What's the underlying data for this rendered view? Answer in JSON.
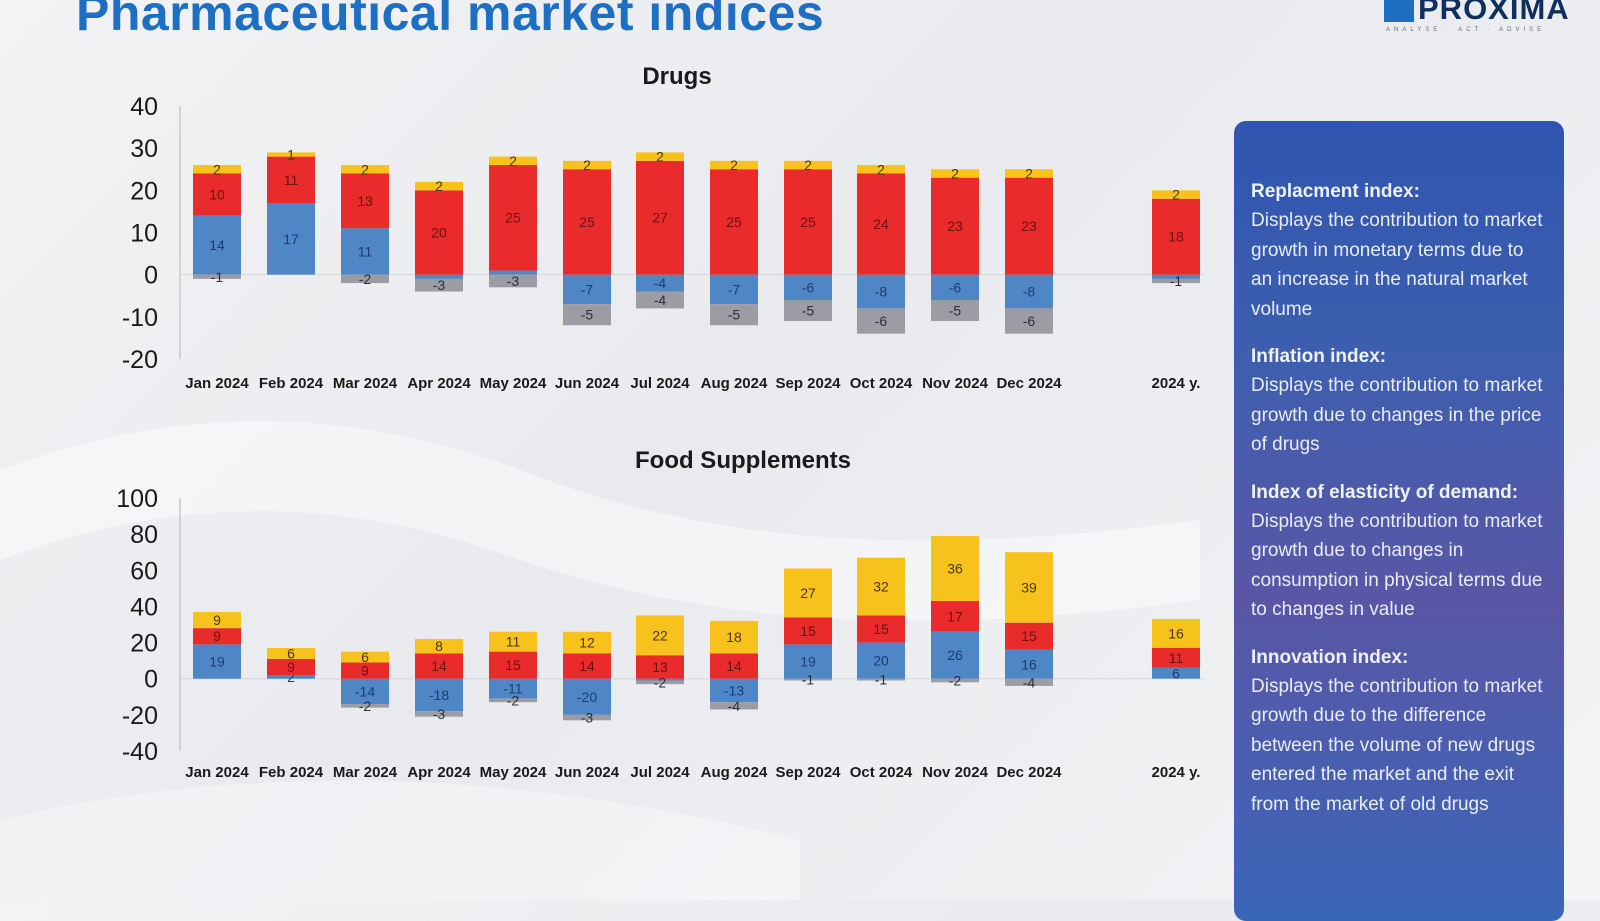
{
  "page": {
    "title": "Pharmaceutical market indices",
    "logo": {
      "name": "PROXIMA",
      "tagline": "ANALYSE · ACT · ADVISE"
    }
  },
  "colors": {
    "replacement": "#4f86c6",
    "inflation": "#ea2b2b",
    "elasticity": "#f7c21c",
    "innovation": "#9c9ca4",
    "title": "#1d6fc4",
    "panel": "#3a5cb0"
  },
  "info_panel": {
    "sections": [
      {
        "heading": "Replacment index:",
        "text": "Displays the contribution to market growth in monetary terms due to an increase in the natural market volume"
      },
      {
        "heading": "Inflation index:",
        "text": "Displays the contribution to market growth due to changes in the price of drugs"
      },
      {
        "heading": "Index of elasticity of demand:",
        "text": "Displays the contribution to market growth due to changes in consumption in physical terms due to changes in value"
      },
      {
        "heading": "Innovation index:",
        "text": "Displays the contribution to market growth due to the difference between the volume of new drugs entered the market and the exit from the market of old drugs"
      }
    ]
  },
  "chart_data": [
    {
      "type": "bar",
      "stacked": true,
      "title": "Drugs",
      "xlabel": "",
      "ylabel": "",
      "ylim": [
        -20,
        40
      ],
      "yticks": [
        40,
        30,
        20,
        10,
        0,
        -10,
        -20
      ],
      "grid": false,
      "legend": "none",
      "categories": [
        "Jan 2024",
        "Feb 2024",
        "Mar 2024",
        "Apr 2024",
        "May 2024",
        "Jun 2024",
        "Jul 2024",
        "Aug 2024",
        "Sep 2024",
        "Oct 2024",
        "Nov 2024",
        "Dec 2024",
        "2024 y."
      ],
      "series": [
        {
          "key": "replacement",
          "color": "#4f86c6",
          "values": [
            14,
            17,
            11,
            -1,
            1,
            -7,
            -4,
            -7,
            -6,
            -8,
            -6,
            -8,
            -1
          ],
          "labels": [
            "14",
            "17",
            "11",
            "",
            "",
            "-7",
            "-4",
            "-7",
            "-6",
            "-8",
            "-6",
            "-8",
            ""
          ]
        },
        {
          "key": "inflation",
          "color": "#ea2b2b",
          "values": [
            10,
            11,
            13,
            20,
            25,
            25,
            27,
            25,
            25,
            24,
            23,
            23,
            18
          ],
          "labels": [
            "10",
            "11",
            "13",
            "20",
            "25",
            "25",
            "27",
            "25",
            "25",
            "24",
            "23",
            "23",
            "18"
          ]
        },
        {
          "key": "elasticity",
          "color": "#f7c21c",
          "values": [
            2,
            1,
            2,
            2,
            2,
            2,
            2,
            2,
            2,
            2,
            2,
            2,
            2
          ],
          "labels": [
            "2",
            "1",
            "2",
            "2",
            "2",
            "2",
            "2",
            "2",
            "2",
            "2",
            "2",
            "2",
            "2"
          ]
        },
        {
          "key": "innovation",
          "color": "#9c9ca4",
          "values": [
            -1,
            0,
            -2,
            -3,
            -3,
            -5,
            -4,
            -5,
            -5,
            -6,
            -5,
            -6,
            -1
          ],
          "labels": [
            "-1",
            "0",
            "-2",
            "-3",
            "-3",
            "-5",
            "-4",
            "-5",
            "-5",
            "-6",
            "-5",
            "-6",
            "-1"
          ]
        }
      ]
    },
    {
      "type": "bar",
      "stacked": true,
      "title": "Food Supplements",
      "xlabel": "",
      "ylabel": "",
      "ylim": [
        -40,
        100
      ],
      "yticks": [
        100,
        80,
        60,
        40,
        20,
        0,
        -20,
        -40
      ],
      "grid": false,
      "legend": "none",
      "categories": [
        "Jan 2024",
        "Feb 2024",
        "Mar 2024",
        "Apr 2024",
        "May 2024",
        "Jun 2024",
        "Jul 2024",
        "Aug 2024",
        "Sep 2024",
        "Oct 2024",
        "Nov 2024",
        "Dec 2024",
        "2024 y."
      ],
      "series": [
        {
          "key": "replacement",
          "color": "#4f86c6",
          "values": [
            19,
            2,
            -14,
            -18,
            -11,
            -20,
            -1,
            -13,
            19,
            20,
            26,
            16,
            6
          ],
          "labels": [
            "19",
            "2",
            "-14",
            "-18",
            "-11",
            "-20",
            "",
            "-13",
            "19",
            "20",
            "26",
            "16",
            "6"
          ]
        },
        {
          "key": "inflation",
          "color": "#ea2b2b",
          "values": [
            9,
            9,
            9,
            14,
            15,
            14,
            13,
            14,
            15,
            15,
            17,
            15,
            11
          ],
          "labels": [
            "9",
            "9",
            "9",
            "14",
            "15",
            "14",
            "13",
            "14",
            "15",
            "15",
            "17",
            "15",
            "11"
          ]
        },
        {
          "key": "elasticity",
          "color": "#f7c21c",
          "values": [
            9,
            6,
            6,
            8,
            11,
            12,
            22,
            18,
            27,
            32,
            36,
            39,
            16
          ],
          "labels": [
            "9",
            "6",
            "6",
            "8",
            "11",
            "12",
            "22",
            "18",
            "27",
            "32",
            "36",
            "39",
            "16"
          ]
        },
        {
          "key": "innovation",
          "color": "#9c9ca4",
          "values": [
            0,
            0,
            -2,
            -3,
            -2,
            -3,
            -2,
            -4,
            -1,
            -1,
            -2,
            -4,
            0
          ],
          "labels": [
            "",
            "",
            "-2",
            "-3",
            "-2",
            "-3",
            "-2",
            "-4",
            "-1",
            "-1",
            "-2",
            "-4",
            ""
          ]
        }
      ]
    }
  ]
}
